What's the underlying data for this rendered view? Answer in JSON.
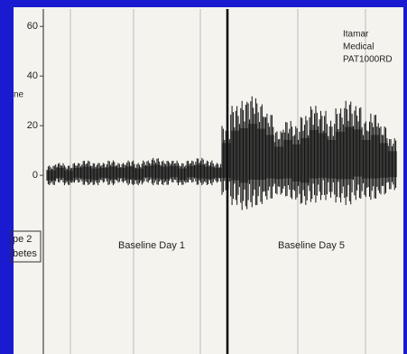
{
  "chart_data": {
    "type": "band",
    "annotations": [
      "Baseline Day 1",
      "Baseline Day 5"
    ],
    "device": [
      "Itamar",
      "Medical",
      "PAT1000RD"
    ],
    "y_label": "ne",
    "box_text": [
      "pe 2",
      "betes"
    ],
    "categories": [
      null,
      null,
      null,
      null,
      null,
      null,
      null,
      null,
      null,
      null,
      null,
      null,
      null,
      null,
      null,
      null,
      null,
      null,
      null,
      null,
      null,
      null,
      null,
      null,
      null,
      null,
      null,
      null,
      null,
      null,
      null,
      null,
      null,
      null,
      null,
      null,
      null,
      null,
      null,
      null
    ],
    "series": [
      {
        "color": "#111111",
        "values": [
          4,
          5,
          4,
          5,
          6,
          5,
          5,
          6,
          5,
          6,
          5,
          6,
          7,
          6,
          6,
          5,
          6,
          7,
          6,
          5,
          20,
          28,
          30,
          32,
          29,
          25,
          18,
          22,
          20,
          24,
          28,
          26,
          22,
          27,
          30,
          28,
          22,
          25,
          20,
          15
        ]
      },
      {
        "color": "#111111",
        "values": [
          -4,
          -3,
          -4,
          -3,
          -4,
          -4,
          -3,
          -4,
          -3,
          -4,
          -4,
          -3,
          -4,
          -4,
          -3,
          -4,
          -3,
          -4,
          -4,
          -3,
          -8,
          -12,
          -14,
          -13,
          -12,
          -10,
          -8,
          -9,
          -10,
          -12,
          -11,
          -10,
          -9,
          -11,
          -12,
          -10,
          -9,
          -10,
          -8,
          -6
        ]
      }
    ],
    "ylim": [
      -72,
      67
    ],
    "yticks": [
      0,
      20,
      40,
      60
    ]
  }
}
